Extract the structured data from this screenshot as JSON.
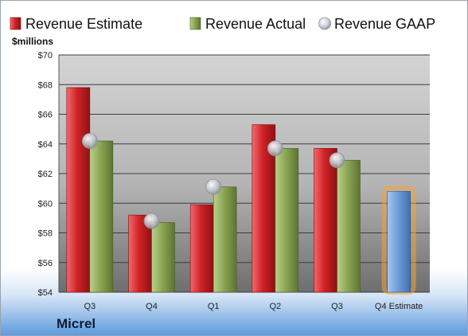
{
  "company": "Micrel",
  "colors": {
    "estimate": "#cc1f24",
    "actual": "#8ca554",
    "gaap": "#c7ccd4",
    "forecast": "#6f9fd9",
    "forecast_glow": "#f2a23a"
  },
  "chart_data": {
    "type": "bar",
    "title": "",
    "xlabel": "",
    "ylabel": "$millions",
    "ylim": [
      54,
      70
    ],
    "yticks": [
      54,
      56,
      58,
      60,
      62,
      64,
      66,
      68,
      70
    ],
    "ytick_labels": [
      "$54",
      "$56",
      "$58",
      "$60",
      "$62",
      "$64",
      "$66",
      "$68",
      "$70"
    ],
    "categories": [
      "Q3",
      "Q4",
      "Q1",
      "Q2",
      "Q3",
      "Q4 Estimate"
    ],
    "series": [
      {
        "name": "Revenue Estimate",
        "values": [
          67.8,
          59.2,
          59.9,
          65.3,
          63.7,
          null
        ]
      },
      {
        "name": "Revenue Actual",
        "values": [
          64.2,
          58.7,
          61.1,
          63.7,
          62.9,
          null
        ]
      },
      {
        "name": "Revenue GAAP",
        "values": [
          64.2,
          58.8,
          61.1,
          63.7,
          62.9,
          null
        ]
      }
    ],
    "forecast": {
      "category": "Q4 Estimate",
      "value": 60.8
    },
    "legend_position": "top",
    "grid": true
  }
}
